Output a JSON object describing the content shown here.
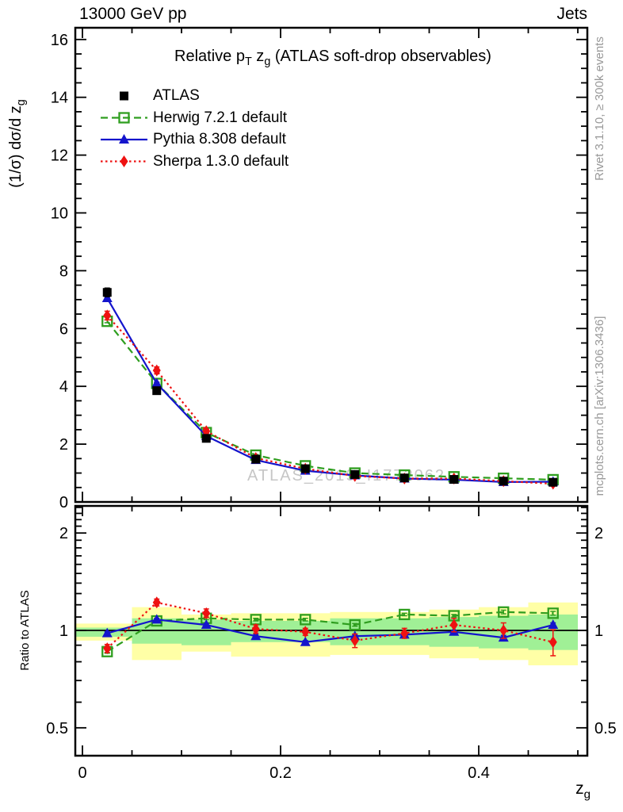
{
  "header": {
    "left": "13000 GeV pp",
    "right": "Jets"
  },
  "title": {
    "p1": "Relative p",
    "sub1": "T",
    "p2": " z",
    "sub2": "g",
    "p3": " (ATLAS soft-drop observables)"
  },
  "y_axis_label": {
    "p1": "(1/σ) dσ/d z",
    "sub": "g"
  },
  "ratio_axis_label": "Ratio to ATLAS",
  "x_axis_label": {
    "p1": "z",
    "sub": "g"
  },
  "watermark": "ATLAS_2019_I1772062",
  "side_notes": {
    "top": "Rivet 3.1.10, ≥ 300k events",
    "bottom": "mcplots.cern.ch [arXiv:1306.3436]"
  },
  "legend": [
    {
      "label": "ATLAS",
      "series": "atlas"
    },
    {
      "label": "Herwig 7.2.1 default",
      "series": "herwig"
    },
    {
      "label": "Pythia 8.308 default",
      "series": "pythia"
    },
    {
      "label": "Sherpa 1.3.0 default",
      "series": "sherpa"
    }
  ],
  "colors": {
    "atlas": "#000000",
    "herwig": "#2f9e1f",
    "pythia": "#1414cc",
    "sherpa": "#ee1111",
    "band_outer": "#ffffa6",
    "band_inner": "#a0f096",
    "frame": "#000000",
    "gray_text": "#999999",
    "watermark": "#c6c6c6"
  },
  "chart_data": {
    "type": "line",
    "title": "Relative pT zg (ATLAS soft-drop observables)",
    "xlabel": "zg",
    "x": [
      0.025,
      0.075,
      0.125,
      0.175,
      0.225,
      0.275,
      0.325,
      0.375,
      0.425,
      0.475
    ],
    "bin_width": 0.05,
    "xlim": [
      0,
      0.51
    ],
    "xticks": [
      0,
      0.2,
      0.4
    ],
    "x_minor_step": 0.05,
    "main": {
      "ylabel": "(1/σ) dσ/d zg",
      "ylim": [
        0,
        16.4
      ],
      "yticks": [
        0,
        2,
        4,
        6,
        8,
        10,
        12,
        14,
        16
      ],
      "y_minor_step": 0.5,
      "series": [
        {
          "name": "ATLAS",
          "marker": "square",
          "line": "none",
          "color_key": "atlas",
          "values": [
            7.25,
            3.85,
            2.2,
            1.48,
            1.15,
            0.95,
            0.83,
            0.78,
            0.72,
            0.68
          ],
          "errors": [
            0.15,
            0.1,
            0.06,
            0.04,
            0.03,
            0.03,
            0.03,
            0.03,
            0.03,
            0.03
          ]
        },
        {
          "name": "Herwig 7.2.1 default",
          "marker": "open-square",
          "line": "dashed",
          "color_key": "herwig",
          "values": [
            6.25,
            4.1,
            2.4,
            1.62,
            1.25,
            1.0,
            0.93,
            0.87,
            0.82,
            0.77
          ],
          "errors": [
            0.05,
            0.04,
            0.03,
            0.02,
            0.02,
            0.02,
            0.02,
            0.02,
            0.02,
            0.02
          ]
        },
        {
          "name": "Pythia 8.308 default",
          "marker": "triangle",
          "line": "solid",
          "color_key": "pythia",
          "values": [
            7.05,
            4.1,
            2.28,
            1.45,
            1.08,
            0.92,
            0.81,
            0.77,
            0.69,
            0.7
          ],
          "errors": [
            0.05,
            0.04,
            0.03,
            0.02,
            0.02,
            0.02,
            0.02,
            0.02,
            0.02,
            0.02
          ]
        },
        {
          "name": "Sherpa 1.3.0 default",
          "marker": "diamond",
          "line": "dotted",
          "color_key": "sherpa",
          "values": [
            6.45,
            4.55,
            2.45,
            1.52,
            1.15,
            0.9,
            0.81,
            0.81,
            0.72,
            0.63
          ],
          "errors": [
            0.15,
            0.12,
            0.07,
            0.05,
            0.04,
            0.04,
            0.04,
            0.04,
            0.04,
            0.05
          ]
        }
      ]
    },
    "ratio": {
      "ylabel": "Ratio to ATLAS",
      "scale": "log",
      "ylim": [
        0.41,
        2.42
      ],
      "yticks": [
        0.5,
        1,
        2
      ],
      "y_minor_ticks": [
        0.6,
        0.7,
        0.8,
        0.9,
        1.1,
        1.2,
        1.3,
        1.4,
        1.5,
        1.6,
        1.7,
        1.8,
        1.9,
        2.1,
        2.2,
        2.3,
        2.4
      ],
      "reference_line": 1,
      "band_outer": [
        [
          0.93,
          1.05
        ],
        [
          0.81,
          1.18
        ],
        [
          0.86,
          1.12
        ],
        [
          0.83,
          1.13
        ],
        [
          0.83,
          1.13
        ],
        [
          0.84,
          1.14
        ],
        [
          0.84,
          1.14
        ],
        [
          0.82,
          1.16
        ],
        [
          0.81,
          1.18
        ],
        [
          0.78,
          1.22
        ]
      ],
      "band_inner": [
        [
          0.956,
          1.02
        ],
        [
          0.91,
          1.09
        ],
        [
          0.9,
          1.08
        ],
        [
          0.92,
          1.07
        ],
        [
          0.92,
          1.07
        ],
        [
          0.9,
          1.09
        ],
        [
          0.9,
          1.09
        ],
        [
          0.89,
          1.1
        ],
        [
          0.88,
          1.11
        ],
        [
          0.87,
          1.12
        ]
      ],
      "series": [
        {
          "name": "Herwig 7.2.1 default",
          "marker": "open-square",
          "line": "dashed",
          "color_key": "herwig",
          "values": [
            0.86,
            1.07,
            1.09,
            1.08,
            1.08,
            1.04,
            1.12,
            1.11,
            1.14,
            1.13
          ],
          "errors": [
            0.01,
            0.01,
            0.01,
            0.01,
            0.01,
            0.01,
            0.01,
            0.01,
            0.015,
            0.015
          ]
        },
        {
          "name": "Pythia 8.308 default",
          "marker": "triangle",
          "line": "solid",
          "color_key": "pythia",
          "values": [
            0.98,
            1.08,
            1.04,
            0.96,
            0.92,
            0.96,
            0.97,
            0.99,
            0.95,
            1.04
          ],
          "errors": [
            0.01,
            0.01,
            0.01,
            0.01,
            0.01,
            0.01,
            0.01,
            0.01,
            0.015,
            0.015
          ]
        },
        {
          "name": "Sherpa 1.3.0 default",
          "marker": "diamond",
          "line": "dotted",
          "color_key": "sherpa",
          "values": [
            0.88,
            1.22,
            1.13,
            1.01,
            0.99,
            0.93,
            0.98,
            1.04,
            1.0,
            0.92
          ],
          "errors": [
            0.025,
            0.03,
            0.035,
            0.03,
            0.025,
            0.045,
            0.035,
            0.05,
            0.055,
            0.085
          ]
        }
      ]
    }
  }
}
